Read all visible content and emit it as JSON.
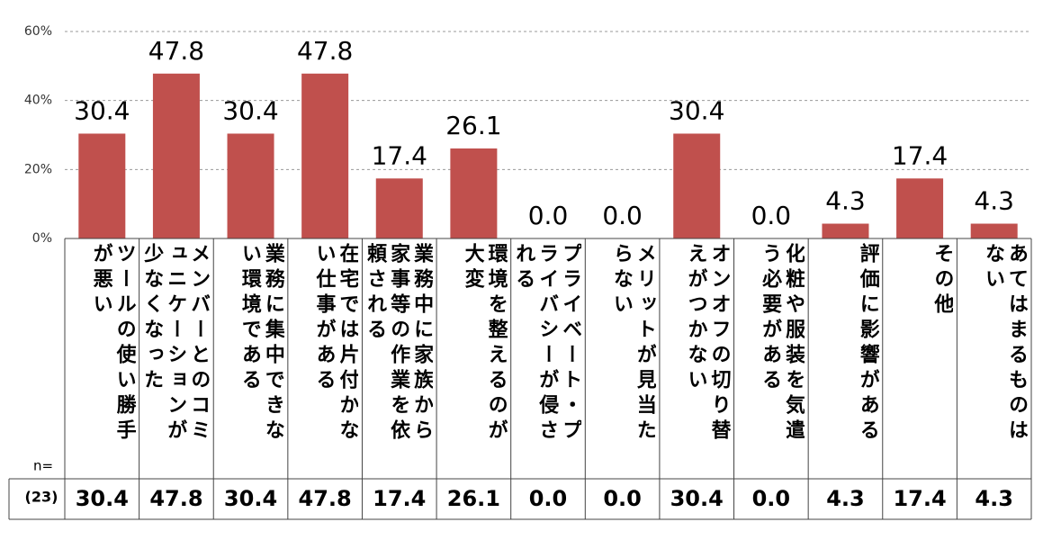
{
  "chart_data": {
    "type": "bar",
    "categories": [
      "ツールの使い勝手が悪い",
      "メンバーとのコミュニケーションが少なくなった",
      "業務に集中できない環境である",
      "在宅では片付かない仕事がある",
      "業務中に家族から家事等の作業を依頼される",
      "環境を整えるのが大変",
      "プライベート・プライバシーが侵される",
      "メリットが見当たらない",
      "オンオフの切り替えがつかない",
      "化粧や服装を気遣う必要がある",
      "評価に影響がある",
      "その他",
      "あてはまるものはない"
    ],
    "values": [
      30.4,
      47.8,
      30.4,
      47.8,
      17.4,
      26.1,
      0.0,
      0.0,
      30.4,
      0.0,
      4.3,
      17.4,
      4.3
    ],
    "value_labels": [
      "30.4",
      "47.8",
      "30.4",
      "47.8",
      "17.4",
      "26.1",
      "0.0",
      "0.0",
      "30.4",
      "0.0",
      "4.3",
      "17.4",
      "4.3"
    ],
    "color": "#c0504d",
    "ylim": [
      0,
      60
    ],
    "yticks": [
      {
        "value": 0,
        "label": "0%"
      },
      {
        "value": 20,
        "label": "20%"
      },
      {
        "value": 40,
        "label": "40%"
      },
      {
        "value": 60,
        "label": "60%"
      }
    ],
    "grid": true,
    "n_label": "n=",
    "n_value": "(23)"
  }
}
